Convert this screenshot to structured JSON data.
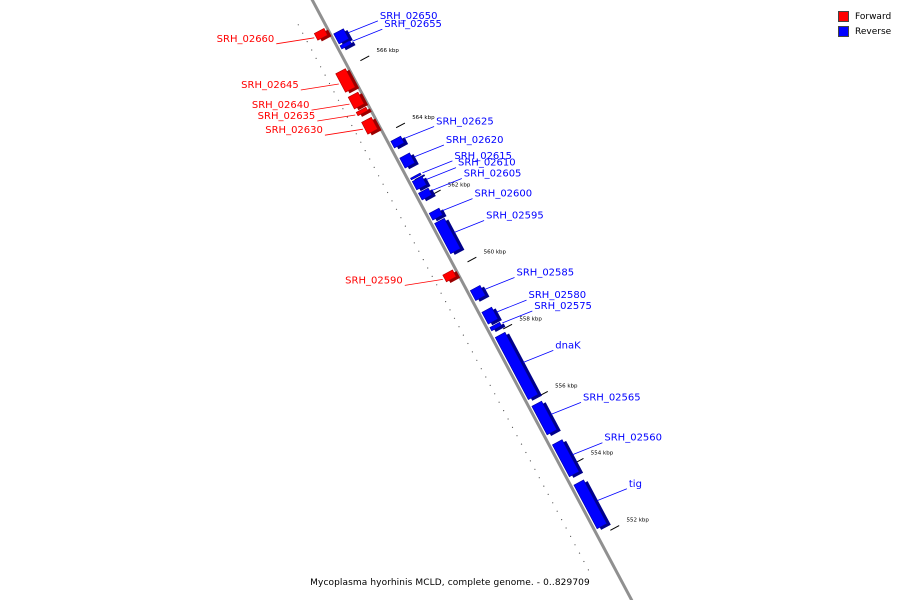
{
  "legend": {
    "forward_label": "Forward",
    "reverse_label": "Reverse",
    "forward_color": "#ff0000",
    "reverse_color": "#0000ff"
  },
  "caption": "Mycoplasma hyorhinis MCLD, complete genome. - 0..829709",
  "axis": {
    "unit": "kbp",
    "ticks": [
      {
        "label": "566 kbp",
        "kb": 566
      },
      {
        "label": "564 kbp",
        "kb": 564
      },
      {
        "label": "562 kbp",
        "kb": 562
      },
      {
        "label": "560 kbp",
        "kb": 560
      },
      {
        "label": "558 kbp",
        "kb": 558
      },
      {
        "label": "556 kbp",
        "kb": 556
      },
      {
        "label": "554 kbp",
        "kb": 554
      },
      {
        "label": "552 kbp",
        "kb": 552
      }
    ]
  },
  "genes": [
    {
      "name": "SRH_02660",
      "strand": "forward",
      "start_kb": 567.2,
      "end_kb": 567.0
    },
    {
      "name": "SRH_02650",
      "strand": "reverse",
      "start_kb": 566.95,
      "end_kb": 566.65
    },
    {
      "name": "SRH_02655",
      "strand": "reverse",
      "start_kb": 566.6,
      "end_kb": 566.5
    },
    {
      "name": "SRH_02645",
      "strand": "forward",
      "start_kb": 566.0,
      "end_kb": 565.45
    },
    {
      "name": "SRH_02640",
      "strand": "forward",
      "start_kb": 565.3,
      "end_kb": 564.95
    },
    {
      "name": "SRH_02635",
      "strand": "forward",
      "start_kb": 564.85,
      "end_kb": 564.75
    },
    {
      "name": "SRH_02630",
      "strand": "forward",
      "start_kb": 564.55,
      "end_kb": 564.2
    },
    {
      "name": "SRH_02625",
      "strand": "reverse",
      "start_kb": 563.75,
      "end_kb": 563.55
    },
    {
      "name": "SRH_02620",
      "strand": "reverse",
      "start_kb": 563.25,
      "end_kb": 562.95
    },
    {
      "name": "SRH_02615",
      "strand": "reverse",
      "start_kb": 562.65,
      "end_kb": 562.6
    },
    {
      "name": "SRH_02610",
      "strand": "reverse",
      "start_kb": 562.55,
      "end_kb": 562.3
    },
    {
      "name": "SRH_02605",
      "strand": "reverse",
      "start_kb": 562.2,
      "end_kb": 562.0
    },
    {
      "name": "SRH_02600",
      "strand": "reverse",
      "start_kb": 561.6,
      "end_kb": 561.4
    },
    {
      "name": "SRH_02595",
      "strand": "reverse",
      "start_kb": 561.3,
      "end_kb": 560.4
    },
    {
      "name": "SRH_02590",
      "strand": "forward",
      "start_kb": 560.0,
      "end_kb": 559.8
    },
    {
      "name": "SRH_02585",
      "strand": "reverse",
      "start_kb": 559.3,
      "end_kb": 559.0
    },
    {
      "name": "SRH_02580",
      "strand": "reverse",
      "start_kb": 558.65,
      "end_kb": 558.3
    },
    {
      "name": "SRH_02575",
      "strand": "reverse",
      "start_kb": 558.2,
      "end_kb": 558.1
    },
    {
      "name": "dnaK",
      "strand": "reverse",
      "start_kb": 557.9,
      "end_kb": 556.05
    },
    {
      "name": "SRH_02565",
      "strand": "reverse",
      "start_kb": 555.85,
      "end_kb": 555.0
    },
    {
      "name": "SRH_02560",
      "strand": "reverse",
      "start_kb": 554.7,
      "end_kb": 553.75
    },
    {
      "name": "tig",
      "strand": "reverse",
      "start_kb": 553.5,
      "end_kb": 552.2
    }
  ]
}
